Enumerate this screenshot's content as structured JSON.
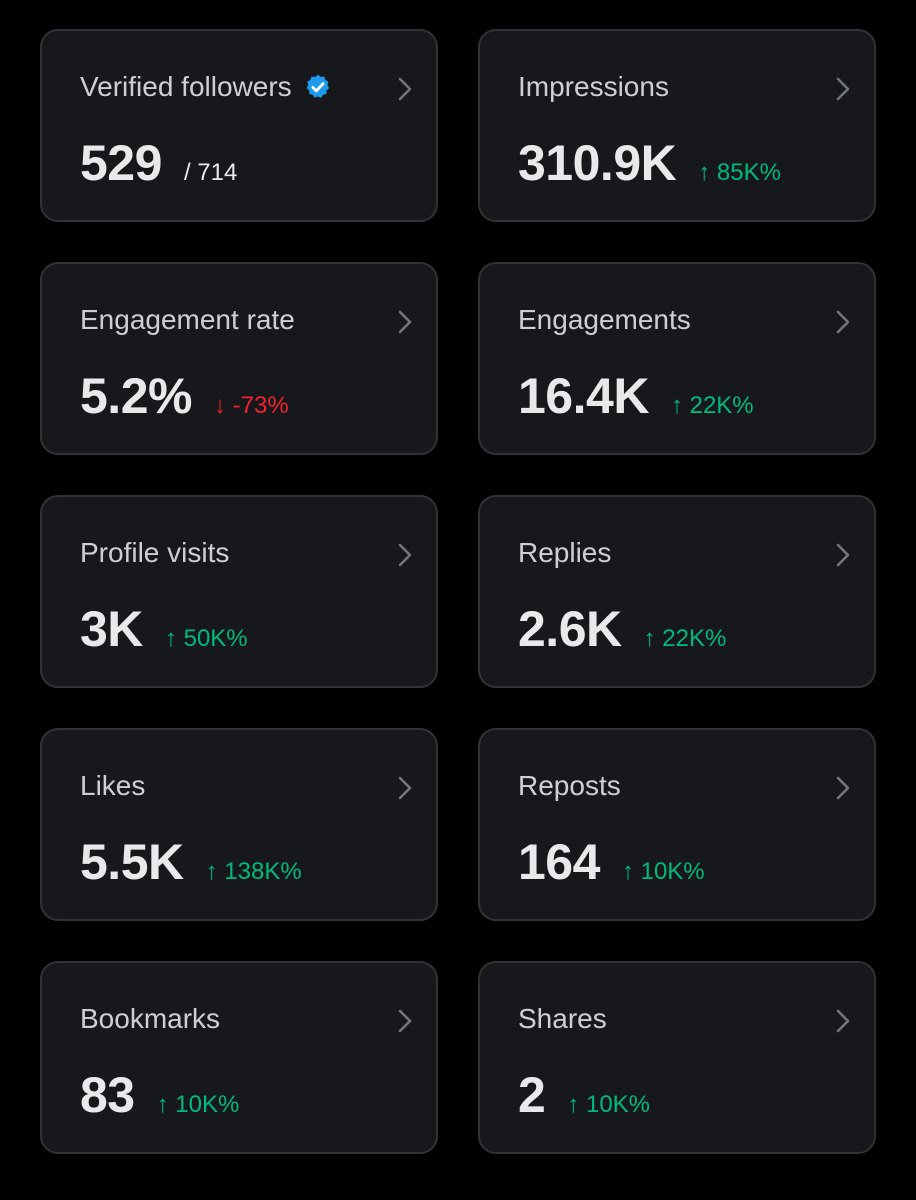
{
  "colors": {
    "background": "#000000",
    "card": "#16181c",
    "card_border": "#2f3336",
    "text": "#e7e9ea",
    "positive": "#00ba7c",
    "negative": "#f4212e",
    "verified": "#1d9bf0"
  },
  "cards": [
    {
      "label": "Verified followers",
      "value": "529",
      "sub": "/ 714",
      "icon": "verified-badge-icon"
    },
    {
      "label": "Impressions",
      "value": "310.9K",
      "change": "↑ 85K%",
      "trend": "up"
    },
    {
      "label": "Engagement rate",
      "value": "5.2%",
      "change": "↓ -73%",
      "trend": "down"
    },
    {
      "label": "Engagements",
      "value": "16.4K",
      "change": "↑ 22K%",
      "trend": "up"
    },
    {
      "label": "Profile visits",
      "value": "3K",
      "change": "↑ 50K%",
      "trend": "up"
    },
    {
      "label": "Replies",
      "value": "2.6K",
      "change": "↑ 22K%",
      "trend": "up"
    },
    {
      "label": "Likes",
      "value": "5.5K",
      "change": "↑ 138K%",
      "trend": "up"
    },
    {
      "label": "Reposts",
      "value": "164",
      "change": "↑ 10K%",
      "trend": "up"
    },
    {
      "label": "Bookmarks",
      "value": "83",
      "change": "↑ 10K%",
      "trend": "up"
    },
    {
      "label": "Shares",
      "value": "2",
      "change": "↑ 10K%",
      "trend": "up"
    }
  ]
}
